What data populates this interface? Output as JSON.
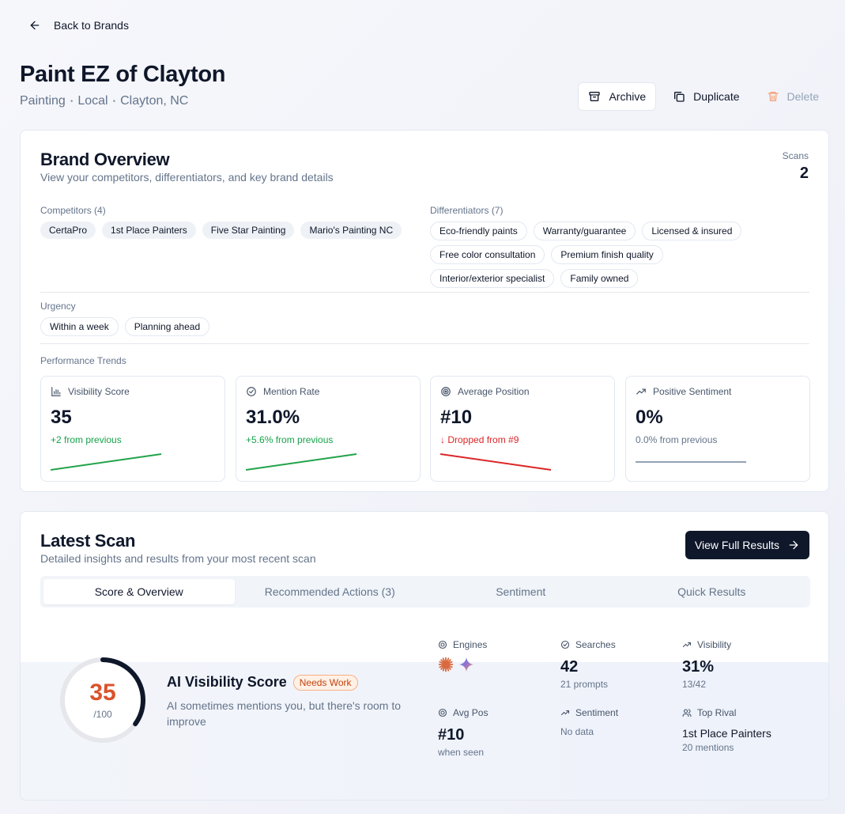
{
  "back": {
    "label": "Back to Brands"
  },
  "brand": {
    "name": "Paint EZ of Clayton",
    "meta": [
      "Painting",
      "Local",
      "Clayton, NC"
    ]
  },
  "actions": {
    "archive": "Archive",
    "duplicate": "Duplicate",
    "delete": "Delete"
  },
  "overview": {
    "title": "Brand Overview",
    "subtitle": "View your competitors, differentiators, and key brand details",
    "scans_label": "Scans",
    "scans_value": "2",
    "competitors_label": "Competitors (4)",
    "competitors": [
      "CertaPro",
      "1st Place Painters",
      "Five Star Painting",
      "Mario's Painting NC"
    ],
    "differentiators_label": "Differentiators (7)",
    "differentiators": [
      "Eco-friendly paints",
      "Warranty/guarantee",
      "Licensed & insured",
      "Free color consultation",
      "Premium finish quality",
      "Interior/exterior specialist",
      "Family owned"
    ],
    "urgency_label": "Urgency",
    "urgency": [
      "Within a week",
      "Planning ahead"
    ],
    "trends_label": "Performance Trends",
    "metrics": [
      {
        "label": "Visibility Score",
        "value": "35",
        "delta": "+2 from previous",
        "trend": "up",
        "icon": "bar-chart-icon"
      },
      {
        "label": "Mention Rate",
        "value": "31.0%",
        "delta": "+5.6% from previous",
        "trend": "up",
        "icon": "check-circle-icon"
      },
      {
        "label": "Average Position",
        "value": "#10",
        "delta": "↓ Dropped from #9",
        "trend": "down",
        "icon": "target-icon"
      },
      {
        "label": "Positive Sentiment",
        "value": "0%",
        "delta": "0.0% from previous",
        "trend": "flat",
        "icon": "trending-up-icon"
      }
    ]
  },
  "scan": {
    "title": "Latest Scan",
    "subtitle": "Detailed insights and results from your most recent scan",
    "view_button": "View Full Results",
    "tabs": [
      "Score & Overview",
      "Recommended Actions (3)",
      "Sentiment",
      "Quick Results"
    ],
    "active_tab": 0,
    "score": {
      "value": "35",
      "max": "/100",
      "fraction": 0.35,
      "title": "AI Visibility Score",
      "badge": "Needs Work",
      "description": "AI sometimes mentions you, but there's room to improve"
    },
    "stats": {
      "engines_label": "Engines",
      "searches_label": "Searches",
      "searches_value": "42",
      "searches_sub": "21 prompts",
      "visibility_label": "Visibility",
      "visibility_value": "31%",
      "visibility_sub": "13/42",
      "avgpos_label": "Avg Pos",
      "avgpos_value": "#10",
      "avgpos_sub": "when seen",
      "sentiment_label": "Sentiment",
      "sentiment_sub": "No data",
      "rival_label": "Top Rival",
      "rival_value": "1st Place Painters",
      "rival_sub": "20 mentions"
    }
  },
  "colors": {
    "accent": "#0f172a",
    "score": "#d9532b",
    "up": "#16a34a",
    "down": "#dc2626",
    "flat": "#94a3b8"
  }
}
